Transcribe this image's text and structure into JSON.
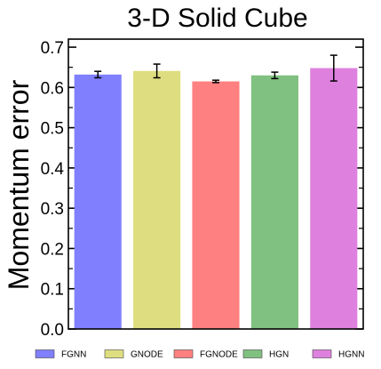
{
  "chart_data": {
    "type": "bar",
    "title": "3-D Solid Cube",
    "xlabel": "",
    "ylabel": "Momentum error",
    "ylim": [
      0,
      0.72
    ],
    "yticks": [
      "0.0",
      "0.1",
      "0.2",
      "0.3",
      "0.4",
      "0.5",
      "0.6",
      "0.7"
    ],
    "grid": false,
    "legend": {
      "position": "bottom",
      "columns": 5
    },
    "series": [
      {
        "name": "FGNN",
        "value": 0.632,
        "error": 0.008,
        "color": "#8080ff"
      },
      {
        "name": "GNODE",
        "value": 0.641,
        "error": 0.017,
        "color": "#dede80"
      },
      {
        "name": "FGNODE",
        "value": 0.615,
        "error": 0.003,
        "color": "#ff8080"
      },
      {
        "name": "HGN",
        "value": 0.63,
        "error": 0.008,
        "color": "#80c080"
      },
      {
        "name": "HGNN",
        "value": 0.648,
        "error": 0.032,
        "color": "#de80de"
      }
    ]
  }
}
